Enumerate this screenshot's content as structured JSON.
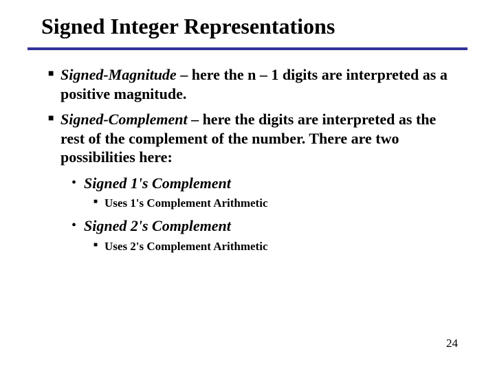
{
  "title": "Signed Integer Representations",
  "rule_color": "#333399",
  "items": [
    {
      "term": "Signed-Magnitude",
      "sep": " – ",
      "desc": "here the n – 1 digits are interpreted as a positive magnitude."
    },
    {
      "term": "Signed-Complement",
      "sep": " – ",
      "desc": "here the digits are interpreted as the rest of the complement of the number.   There are two possibilities here:"
    }
  ],
  "subitems": [
    {
      "label": "Signed 1's Complement",
      "note": "Uses 1's Complement Arithmetic"
    },
    {
      "label": "Signed 2's Complement",
      "note": "Uses 2's Complement Arithmetic"
    }
  ],
  "page_number": "24"
}
